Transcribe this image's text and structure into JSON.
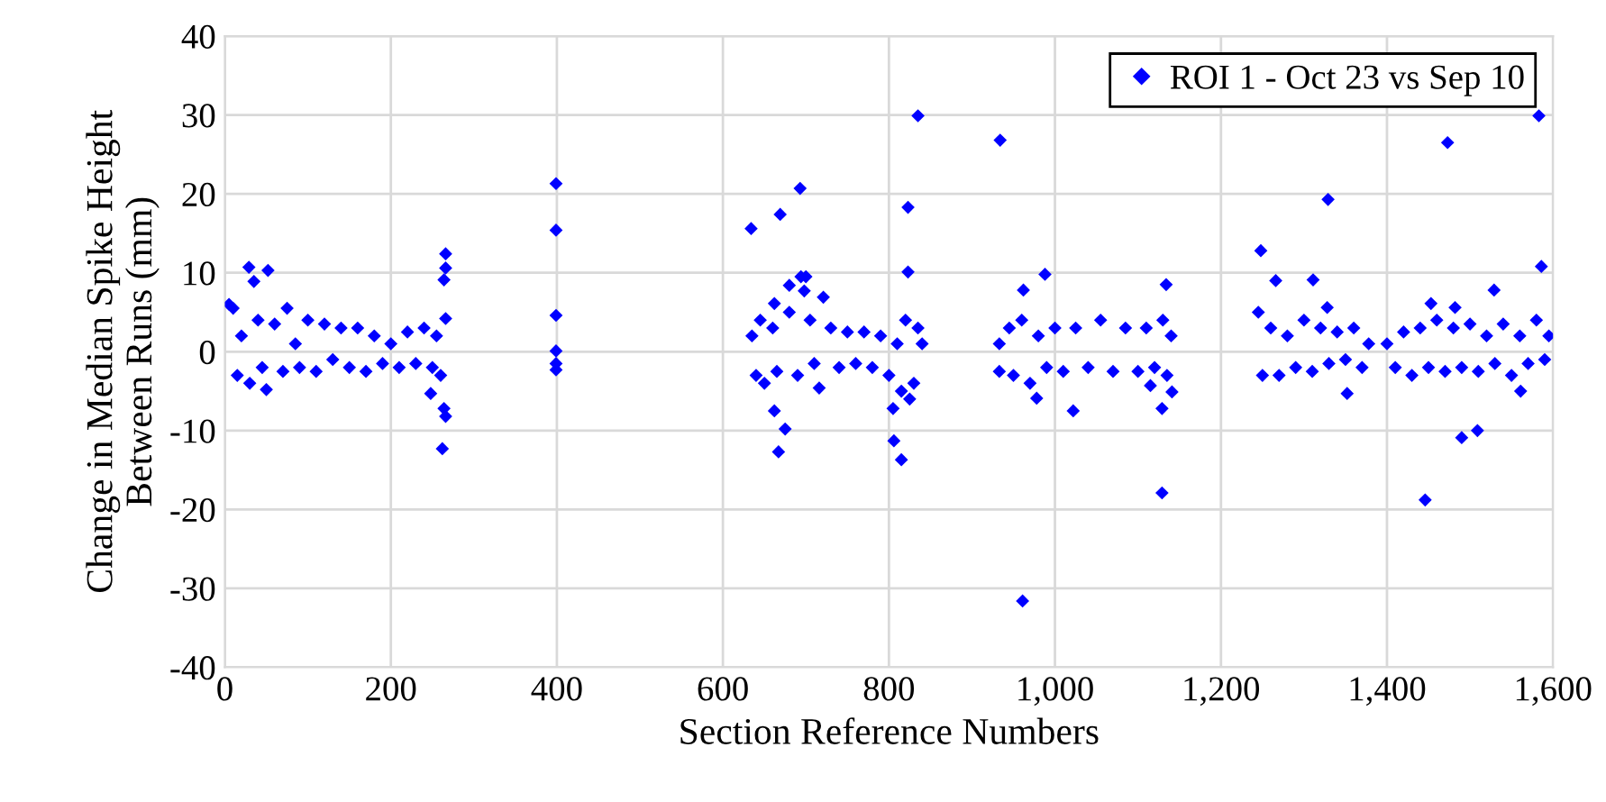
{
  "chart_data": {
    "type": "scatter",
    "xlabel": "Section Reference Numbers",
    "ylabel": "Change in Median Spike Height\nBetween Runs (mm)",
    "xlim": [
      0,
      1600
    ],
    "ylim": [
      -40,
      40
    ],
    "xticks": [
      0,
      200,
      400,
      600,
      800,
      {
        "value": 1000,
        "label": "1,000"
      },
      {
        "value": 1200,
        "label": "1,200"
      },
      {
        "value": 1400,
        "label": "1,400"
      },
      {
        "value": 1600,
        "label": "1,600"
      }
    ],
    "yticks": [
      -40,
      -30,
      -20,
      -10,
      0,
      10,
      20,
      30,
      40
    ],
    "grid": true,
    "legend": "top right",
    "marker": "diamond",
    "series": [
      {
        "name": "ROI 1 - Oct 23 vs Sep 10",
        "color": "#0000ff",
        "x": [
          5,
          10,
          15,
          20,
          30,
          40,
          45,
          60,
          70,
          75,
          85,
          90,
          100,
          110,
          120,
          130,
          140,
          150,
          160,
          170,
          180,
          190,
          200,
          210,
          220,
          230,
          240,
          250,
          255,
          260,
          29,
          35,
          52,
          50,
          266,
          266,
          264,
          266,
          248,
          264,
          266,
          262,
          399,
          399,
          399,
          399,
          399,
          399,
          635,
          640,
          645,
          650,
          660,
          665,
          680,
          690,
          705,
          710,
          730,
          740,
          750,
          760,
          770,
          780,
          790,
          800,
          810,
          815,
          820,
          825,
          830,
          835,
          840,
          634,
          669,
          693,
          694,
          700,
          680,
          698,
          662,
          721,
          662,
          675,
          667,
          716,
          806,
          815,
          823,
          823,
          805,
          835,
          945,
          950,
          960,
          970,
          980,
          990,
          1000,
          1010,
          1025,
          1040,
          1055,
          1070,
          1085,
          1100,
          1110,
          1120,
          1130,
          1135,
          1140,
          934,
          933,
          933,
          961,
          988,
          962,
          978,
          1022,
          1129,
          1134,
          1129,
          1141,
          1115,
          1245,
          1250,
          1260,
          1270,
          1280,
          1290,
          1300,
          1310,
          1320,
          1330,
          1340,
          1350,
          1360,
          1370,
          1378,
          1248,
          1266,
          1311,
          1329,
          1328,
          1352,
          1400,
          1410,
          1420,
          1430,
          1440,
          1450,
          1460,
          1470,
          1480,
          1490,
          1500,
          1510,
          1520,
          1530,
          1540,
          1550,
          1560,
          1570,
          1580,
          1590,
          1595,
          1473,
          1446,
          1490,
          1509,
          1529,
          1583,
          1586,
          1561,
          1453,
          1482
        ],
        "values": [
          6,
          5.5,
          -3,
          2,
          -4,
          4,
          -2,
          3.5,
          -2.5,
          5.5,
          1,
          -2,
          4,
          -2.5,
          3.5,
          -1,
          3,
          -2,
          3,
          -2.5,
          2,
          -1.5,
          1,
          -2,
          2.5,
          -1.5,
          3,
          -2,
          2,
          -3,
          10.7,
          8.9,
          10.3,
          -4.8,
          12.4,
          10.6,
          9.1,
          4.2,
          -5.3,
          -7.2,
          -8.2,
          -12.3,
          21.3,
          15.4,
          4.6,
          0.1,
          -1.5,
          -2.3,
          2,
          -3,
          4,
          -4,
          3,
          -2.5,
          5,
          -3,
          4,
          -1.5,
          3,
          -2,
          2.5,
          -1.5,
          2.5,
          -2,
          2,
          -3,
          1,
          -5,
          4,
          -6,
          -4,
          3,
          1,
          15.6,
          17.4,
          20.7,
          9.5,
          9.5,
          8.4,
          7.7,
          6.1,
          6.9,
          -7.5,
          -9.8,
          -12.7,
          -4.6,
          -11.3,
          -13.7,
          18.3,
          10.1,
          -7.2,
          29.9,
          3,
          -3,
          4,
          -4,
          2,
          -2,
          3,
          -2.5,
          3,
          -2,
          4,
          -2.5,
          3,
          -2.5,
          3,
          -2,
          4,
          -3,
          2,
          26.8,
          1,
          -2.5,
          -31.6,
          9.8,
          7.8,
          -5.9,
          -7.5,
          -17.9,
          8.5,
          -7.2,
          -5.1,
          -4.3,
          5,
          -3,
          3,
          -3,
          2,
          -2,
          4,
          -2.5,
          3,
          -1.5,
          2.5,
          -1,
          3,
          -2,
          1,
          12.8,
          9,
          9.1,
          19.3,
          5.6,
          -5.3,
          1,
          -2,
          2.5,
          -3,
          3,
          -2,
          4,
          -2.5,
          3,
          -2,
          3.5,
          -2.5,
          2,
          -1.5,
          3.5,
          -3,
          2,
          -1.5,
          4,
          -1,
          2,
          26.5,
          -18.8,
          -10.9,
          -10,
          7.8,
          29.9,
          10.8,
          -5,
          6.1,
          5.6
        ]
      }
    ]
  }
}
